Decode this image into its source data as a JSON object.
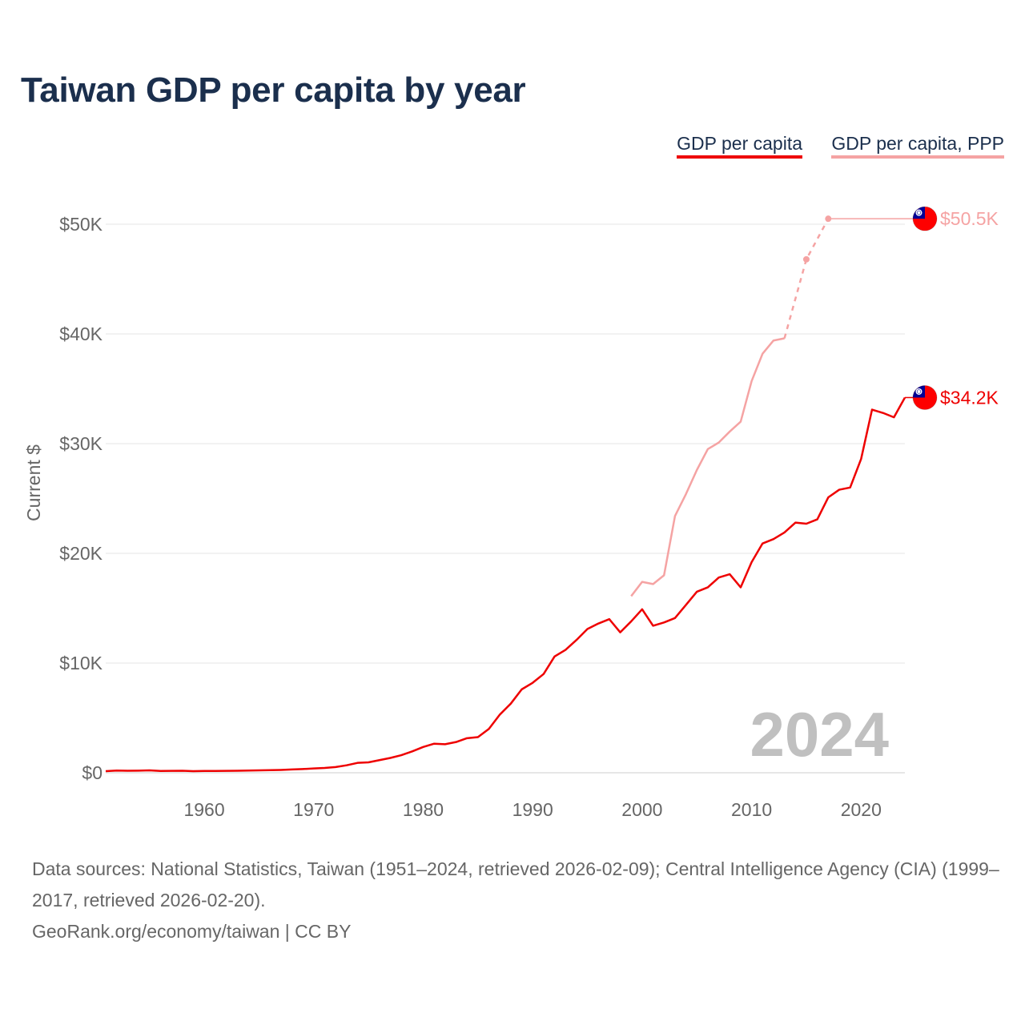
{
  "title": "Taiwan GDP per capita by year",
  "legend": {
    "gdp_label": "GDP per capita",
    "ppp_label": "GDP per capita, PPP"
  },
  "colors": {
    "gdp": "#ee0000",
    "ppp": "#f5a3a3",
    "title": "#1b2f4d",
    "grid": "#e6e6e6",
    "axis_text": "#666666",
    "year_watermark": "#c0c0c0"
  },
  "footer": {
    "sources": "Data sources: National Statistics, Taiwan (1951–2024, retrieved 2026-02-09); Central Intelligence Agency (CIA) (1999–2017, retrieved 2026-02-20).",
    "credit": "GeoRank.org/economy/taiwan | CC BY"
  },
  "chart_data": {
    "type": "line",
    "title": "Taiwan GDP per capita by year",
    "xlabel": "",
    "ylabel": "Current $",
    "xlim": [
      1951,
      2024
    ],
    "ylim": [
      0,
      50000
    ],
    "x_ticks": [
      1960,
      1970,
      1980,
      1990,
      2000,
      2010,
      2020
    ],
    "x_tick_labels": [
      "1960",
      "1970",
      "1980",
      "1990",
      "2000",
      "2010",
      "2020"
    ],
    "y_ticks": [
      0,
      10000,
      20000,
      30000,
      40000,
      50000
    ],
    "y_tick_labels": [
      "$0",
      "$10K",
      "$20K",
      "$30K",
      "$40K",
      "$50K"
    ],
    "grid": true,
    "year_label": "2024",
    "series": [
      {
        "name": "GDP per capita",
        "color": "#ee0000",
        "end_label": "$34.2K",
        "icon": "taiwan-flag-icon",
        "x": [
          1951,
          1952,
          1953,
          1954,
          1955,
          1956,
          1957,
          1958,
          1959,
          1960,
          1961,
          1962,
          1963,
          1964,
          1965,
          1966,
          1967,
          1968,
          1969,
          1970,
          1971,
          1972,
          1973,
          1974,
          1975,
          1976,
          1977,
          1978,
          1979,
          1980,
          1981,
          1982,
          1983,
          1984,
          1985,
          1986,
          1987,
          1988,
          1989,
          1990,
          1991,
          1992,
          1993,
          1994,
          1995,
          1996,
          1997,
          1998,
          1999,
          2000,
          2001,
          2002,
          2003,
          2004,
          2005,
          2006,
          2007,
          2008,
          2009,
          2010,
          2011,
          2012,
          2013,
          2014,
          2015,
          2016,
          2017,
          2018,
          2019,
          2020,
          2021,
          2022,
          2023,
          2024
        ],
        "values": [
          150,
          200,
          180,
          190,
          220,
          160,
          170,
          180,
          150,
          160,
          160,
          170,
          180,
          200,
          220,
          240,
          260,
          300,
          340,
          390,
          440,
          520,
          680,
          900,
          950,
          1150,
          1350,
          1600,
          1950,
          2350,
          2650,
          2600,
          2800,
          3150,
          3250,
          4000,
          5300,
          6300,
          7600,
          8200,
          9000,
          10600,
          11200,
          12100,
          13100,
          13600,
          14000,
          12800,
          13800,
          14900,
          13400,
          13700,
          14100,
          15300,
          16500,
          16900,
          17800,
          18100,
          16900,
          19200,
          20900,
          21300,
          21900,
          22800,
          22700,
          23100,
          25100,
          25800,
          26000,
          28600,
          33100,
          32800,
          32400,
          34200
        ]
      },
      {
        "name": "GDP per capita, PPP",
        "color": "#f5a3a3",
        "end_label": "$50.5K",
        "icon": "taiwan-flag-icon",
        "x": [
          1999,
          2000,
          2001,
          2002,
          2003,
          2004,
          2005,
          2006,
          2007,
          2008,
          2009,
          2010,
          2011,
          2012,
          2013,
          2015,
          2017
        ],
        "values": [
          16100,
          17400,
          17200,
          18000,
          23400,
          25400,
          27600,
          29500,
          30100,
          31100,
          32000,
          35700,
          38200,
          39400,
          39600,
          46800,
          50500
        ],
        "dashed_from_x": 2013,
        "point_markers_x": [
          2015,
          2017
        ]
      }
    ]
  }
}
